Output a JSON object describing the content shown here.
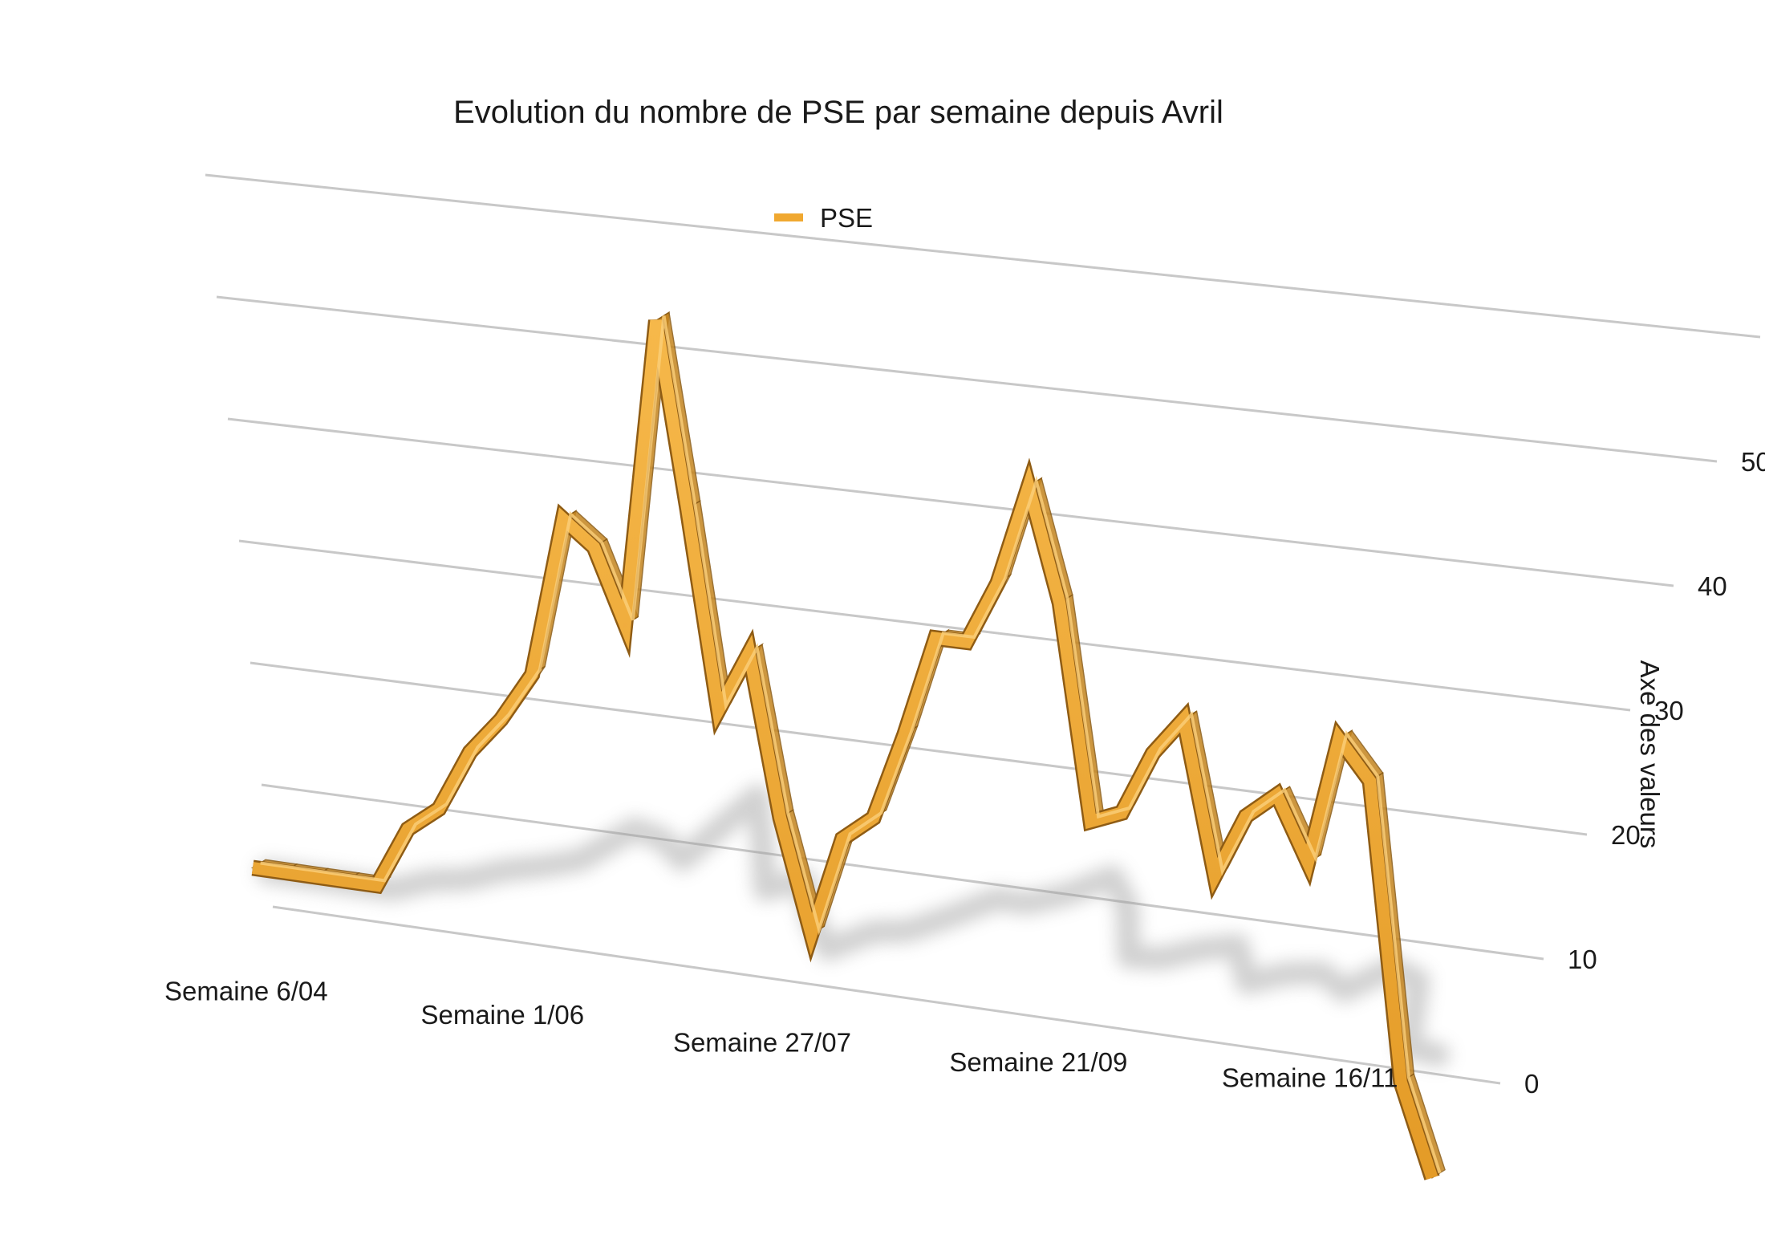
{
  "chart_data": {
    "type": "line",
    "title": "Evolution du nombre de PSE par semaine depuis Avril",
    "legend": [
      "PSE"
    ],
    "ylabel": "Axe des valeurs",
    "xlabel": "",
    "ylim": [
      0,
      50
    ],
    "yticks": [
      0,
      10,
      20,
      30,
      40,
      50
    ],
    "x_tick_labels": [
      "Semaine 6/04",
      "Semaine 1/06",
      "Semaine 27/07",
      "Semaine  21/09",
      "Semaine 16/11"
    ],
    "series": [
      {
        "name": "PSE",
        "color": "#f0a830",
        "values": [
          3,
          3,
          3,
          3,
          3,
          8,
          10,
          15,
          18,
          22,
          35,
          33,
          27,
          52,
          37,
          21,
          26,
          13,
          4,
          12,
          14,
          21,
          29,
          29,
          34,
          42,
          33,
          16,
          17,
          22,
          25,
          13,
          18,
          20,
          15,
          25,
          22,
          -1,
          -8
        ]
      }
    ]
  }
}
